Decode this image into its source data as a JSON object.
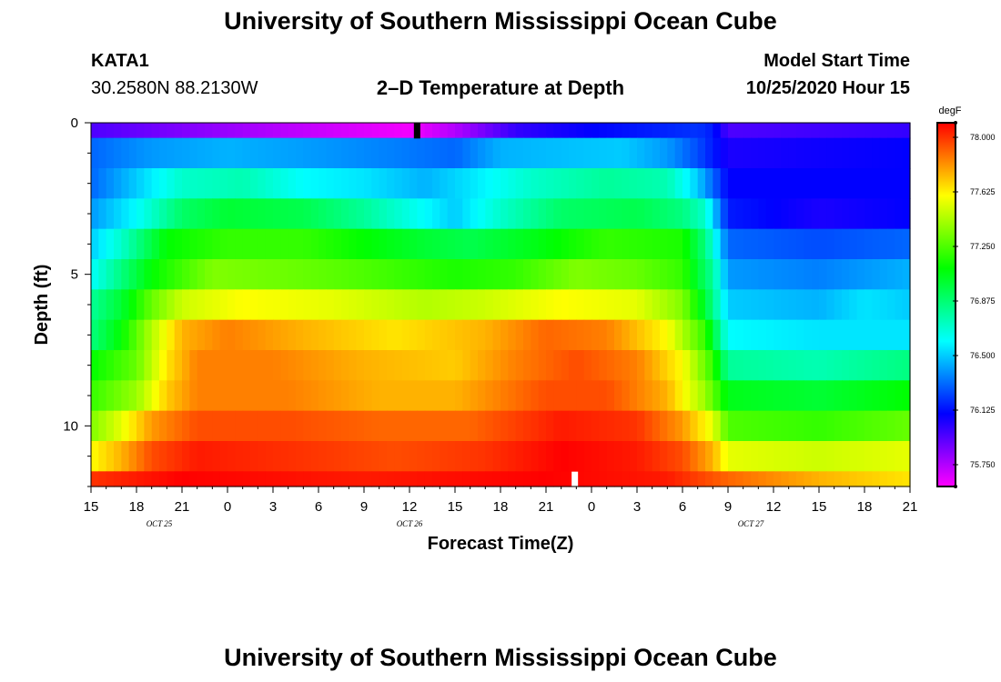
{
  "page": {
    "title_top": "University of Southern Mississippi Ocean Cube",
    "title_bottom": "University of Southern Mississippi Ocean Cube",
    "station_id": "KATA1",
    "station_coords": "30.2580N 88.2130W",
    "plot_title": "2–D Temperature at Depth",
    "model_start_label": "Model Start Time",
    "model_start_value": "10/25/2020 Hour 15"
  },
  "chart_data": {
    "type": "heatmap",
    "title": "2-D Temperature at Depth",
    "xlabel": "Forecast Time(Z)",
    "ylabel": "Depth (ft)",
    "x_range_hours": [
      0,
      54
    ],
    "x_ticks": [
      {
        "hour": 0,
        "label": "15"
      },
      {
        "hour": 3,
        "label": "18"
      },
      {
        "hour": 6,
        "label": "21"
      },
      {
        "hour": 9,
        "label": "0"
      },
      {
        "hour": 12,
        "label": "3"
      },
      {
        "hour": 15,
        "label": "6"
      },
      {
        "hour": 18,
        "label": "9"
      },
      {
        "hour": 21,
        "label": "12"
      },
      {
        "hour": 24,
        "label": "15"
      },
      {
        "hour": 27,
        "label": "18"
      },
      {
        "hour": 30,
        "label": "21"
      },
      {
        "hour": 33,
        "label": "0"
      },
      {
        "hour": 36,
        "label": "3"
      },
      {
        "hour": 39,
        "label": "6"
      },
      {
        "hour": 42,
        "label": "9"
      },
      {
        "hour": 45,
        "label": "12"
      },
      {
        "hour": 48,
        "label": "15"
      },
      {
        "hour": 51,
        "label": "18"
      },
      {
        "hour": 54,
        "label": "21"
      }
    ],
    "date_labels": [
      {
        "hour": 4.5,
        "label": "OCT 25"
      },
      {
        "hour": 21,
        "label": "OCT 26"
      },
      {
        "hour": 43.5,
        "label": "OCT 27"
      }
    ],
    "y_range_ft": [
      0,
      12
    ],
    "y_ticks": [
      {
        "value": 0,
        "label": "0"
      },
      {
        "value": 5,
        "label": "5"
      },
      {
        "value": 10,
        "label": "10"
      }
    ],
    "colorbar": {
      "unit": "degF",
      "min": 75.6,
      "max": 78.1,
      "tick_labels": [
        "78.000",
        "77.625",
        "77.250",
        "76.875",
        "76.500",
        "76.125",
        "75.750"
      ],
      "tick_values": [
        78.0,
        77.625,
        77.25,
        76.875,
        76.5,
        76.125,
        75.75
      ]
    },
    "markers": [
      {
        "hour": 21.5,
        "depth": 0.25,
        "color": "#000000"
      },
      {
        "hour": 31.9,
        "depth": 11.75,
        "color": "#ffffff"
      }
    ],
    "temperature_layers_degF": [
      {
        "depth_top": 0,
        "depth_bottom": 0.5,
        "keyframes": [
          [
            0,
            75.95
          ],
          [
            12,
            75.75
          ],
          [
            21,
            75.62
          ],
          [
            24,
            75.75
          ],
          [
            28,
            76.0
          ],
          [
            33,
            76.1
          ],
          [
            40,
            76.2
          ],
          [
            41,
            76.15
          ],
          [
            42,
            75.95
          ],
          [
            54,
            76.0
          ]
        ]
      },
      {
        "depth_top": 0.5,
        "depth_bottom": 1.5,
        "keyframes": [
          [
            0,
            76.3
          ],
          [
            4,
            76.4
          ],
          [
            9,
            76.45
          ],
          [
            15,
            76.4
          ],
          [
            20,
            76.35
          ],
          [
            24,
            76.3
          ],
          [
            27,
            76.45
          ],
          [
            35,
            76.5
          ],
          [
            38,
            76.4
          ],
          [
            40,
            76.25
          ],
          [
            42,
            76.05
          ],
          [
            54,
            76.1
          ]
        ]
      },
      {
        "depth_top": 1.5,
        "depth_bottom": 2.5,
        "keyframes": [
          [
            0,
            76.3
          ],
          [
            3,
            76.5
          ],
          [
            6,
            76.7
          ],
          [
            10,
            76.75
          ],
          [
            14,
            76.6
          ],
          [
            18,
            76.55
          ],
          [
            22,
            76.45
          ],
          [
            25,
            76.55
          ],
          [
            29,
            76.7
          ],
          [
            34,
            76.8
          ],
          [
            38,
            76.75
          ],
          [
            40,
            76.5
          ],
          [
            42,
            76.1
          ],
          [
            54,
            76.1
          ]
        ]
      },
      {
        "depth_top": 2.5,
        "depth_bottom": 3.5,
        "keyframes": [
          [
            0,
            76.4
          ],
          [
            3,
            76.6
          ],
          [
            6,
            76.9
          ],
          [
            9,
            77.0
          ],
          [
            14,
            76.95
          ],
          [
            18,
            76.8
          ],
          [
            22,
            76.6
          ],
          [
            24,
            76.5
          ],
          [
            27,
            76.7
          ],
          [
            31,
            76.9
          ],
          [
            36,
            76.95
          ],
          [
            39,
            76.85
          ],
          [
            40.5,
            76.7
          ],
          [
            42,
            76.15
          ],
          [
            48,
            76.05
          ],
          [
            54,
            76.1
          ]
        ]
      },
      {
        "depth_top": 3.5,
        "depth_bottom": 4.5,
        "keyframes": [
          [
            0,
            76.5
          ],
          [
            2,
            76.7
          ],
          [
            5,
            77.1
          ],
          [
            9,
            77.2
          ],
          [
            14,
            77.2
          ],
          [
            18,
            77.1
          ],
          [
            22,
            77.0
          ],
          [
            25,
            76.95
          ],
          [
            29,
            77.05
          ],
          [
            34,
            77.2
          ],
          [
            39,
            77.15
          ],
          [
            40.5,
            76.85
          ],
          [
            42,
            76.3
          ],
          [
            48,
            76.25
          ],
          [
            54,
            76.3
          ]
        ]
      },
      {
        "depth_top": 4.5,
        "depth_bottom": 5.5,
        "keyframes": [
          [
            0,
            76.6
          ],
          [
            2,
            76.85
          ],
          [
            4,
            77.1
          ],
          [
            8,
            77.35
          ],
          [
            14,
            77.3
          ],
          [
            18,
            77.25
          ],
          [
            24,
            77.15
          ],
          [
            28,
            77.2
          ],
          [
            32,
            77.35
          ],
          [
            36,
            77.3
          ],
          [
            39,
            77.2
          ],
          [
            41,
            76.8
          ],
          [
            42,
            76.4
          ],
          [
            48,
            76.35
          ],
          [
            54,
            76.45
          ]
        ]
      },
      {
        "depth_top": 5.5,
        "depth_bottom": 6.5,
        "keyframes": [
          [
            0,
            76.8
          ],
          [
            2,
            77.0
          ],
          [
            4,
            77.3
          ],
          [
            6,
            77.5
          ],
          [
            10,
            77.6
          ],
          [
            16,
            77.55
          ],
          [
            22,
            77.45
          ],
          [
            26,
            77.5
          ],
          [
            31,
            77.6
          ],
          [
            36,
            77.55
          ],
          [
            39,
            77.35
          ],
          [
            40.5,
            77.0
          ],
          [
            42,
            76.5
          ],
          [
            48,
            76.45
          ],
          [
            51,
            76.55
          ],
          [
            54,
            76.5
          ]
        ]
      },
      {
        "depth_top": 6.5,
        "depth_bottom": 7.5,
        "keyframes": [
          [
            0,
            76.85
          ],
          [
            2,
            77.1
          ],
          [
            4,
            77.45
          ],
          [
            6,
            77.75
          ],
          [
            9,
            77.85
          ],
          [
            14,
            77.75
          ],
          [
            20,
            77.65
          ],
          [
            26,
            77.75
          ],
          [
            30,
            77.9
          ],
          [
            34,
            77.85
          ],
          [
            38,
            77.6
          ],
          [
            40.5,
            77.2
          ],
          [
            42,
            76.6
          ],
          [
            48,
            76.55
          ],
          [
            54,
            76.55
          ]
        ]
      },
      {
        "depth_top": 7.5,
        "depth_bottom": 8.5,
        "keyframes": [
          [
            0,
            77.1
          ],
          [
            3,
            77.3
          ],
          [
            5,
            77.65
          ],
          [
            7,
            77.85
          ],
          [
            12,
            77.85
          ],
          [
            18,
            77.75
          ],
          [
            24,
            77.7
          ],
          [
            28,
            77.85
          ],
          [
            32,
            77.95
          ],
          [
            36,
            77.85
          ],
          [
            39,
            77.6
          ],
          [
            41,
            77.2
          ],
          [
            42,
            76.8
          ],
          [
            48,
            76.75
          ],
          [
            54,
            76.85
          ]
        ]
      },
      {
        "depth_top": 8.5,
        "depth_bottom": 9.5,
        "keyframes": [
          [
            0,
            77.2
          ],
          [
            3,
            77.4
          ],
          [
            5,
            77.7
          ],
          [
            7,
            77.85
          ],
          [
            13,
            77.85
          ],
          [
            19,
            77.75
          ],
          [
            24,
            77.75
          ],
          [
            30,
            77.95
          ],
          [
            34,
            77.95
          ],
          [
            38,
            77.75
          ],
          [
            40.5,
            77.4
          ],
          [
            42,
            77.05
          ],
          [
            48,
            77.0
          ],
          [
            54,
            77.1
          ]
        ]
      },
      {
        "depth_top": 9.5,
        "depth_bottom": 10.5,
        "keyframes": [
          [
            0,
            77.35
          ],
          [
            2,
            77.55
          ],
          [
            4,
            77.8
          ],
          [
            7,
            77.95
          ],
          [
            13,
            77.95
          ],
          [
            19,
            77.9
          ],
          [
            25,
            77.9
          ],
          [
            31,
            78.05
          ],
          [
            36,
            78.0
          ],
          [
            39,
            77.8
          ],
          [
            41,
            77.55
          ],
          [
            42,
            77.25
          ],
          [
            48,
            77.2
          ],
          [
            54,
            77.3
          ]
        ]
      },
      {
        "depth_top": 10.5,
        "depth_bottom": 11.5,
        "keyframes": [
          [
            0,
            77.6
          ],
          [
            2,
            77.75
          ],
          [
            4,
            77.95
          ],
          [
            7,
            78.05
          ],
          [
            14,
            78.0
          ],
          [
            20,
            77.95
          ],
          [
            26,
            78.0
          ],
          [
            31,
            78.1
          ],
          [
            36,
            78.05
          ],
          [
            39,
            77.95
          ],
          [
            41,
            77.75
          ],
          [
            42,
            77.55
          ],
          [
            48,
            77.5
          ],
          [
            54,
            77.55
          ]
        ]
      },
      {
        "depth_top": 11.5,
        "depth_bottom": 12,
        "keyframes": [
          [
            0,
            78.0
          ],
          [
            6,
            78.1
          ],
          [
            18,
            78.05
          ],
          [
            30,
            78.1
          ],
          [
            38,
            78.05
          ],
          [
            42,
            77.9
          ],
          [
            48,
            77.75
          ],
          [
            54,
            77.65
          ]
        ]
      }
    ]
  }
}
